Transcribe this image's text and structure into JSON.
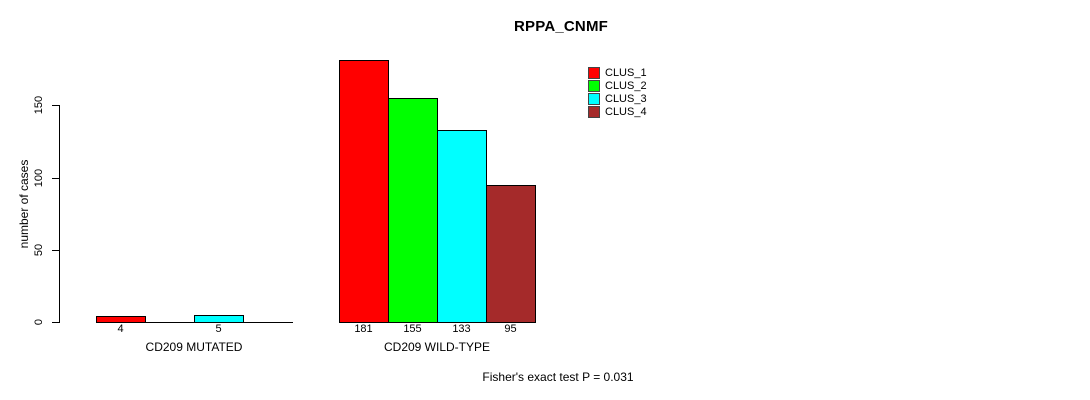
{
  "chart_data": {
    "type": "bar",
    "title": "RPPA_CNMF",
    "ylabel": "number of cases",
    "xlabel": "",
    "groups": [
      "CD209 MUTATED",
      "CD209 WILD-TYPE"
    ],
    "series": [
      {
        "name": "CLUS_1",
        "color": "#ff0000",
        "values": [
          4,
          181
        ]
      },
      {
        "name": "CLUS_2",
        "color": "#00ff00",
        "values": [
          0,
          155
        ]
      },
      {
        "name": "CLUS_3",
        "color": "#00ffff",
        "values": [
          5,
          133
        ]
      },
      {
        "name": "CLUS_4",
        "color": "#a52a2a",
        "values": [
          0,
          95
        ]
      }
    ],
    "yticks": [
      0,
      50,
      100,
      150
    ],
    "ylim": [
      0,
      190
    ],
    "grid": false,
    "bar_value_labels": "shown under each non-zero bar",
    "legend_position": "top-right",
    "axis_color": "#000000",
    "annotation": "Fisher's exact test P = 0.031"
  }
}
